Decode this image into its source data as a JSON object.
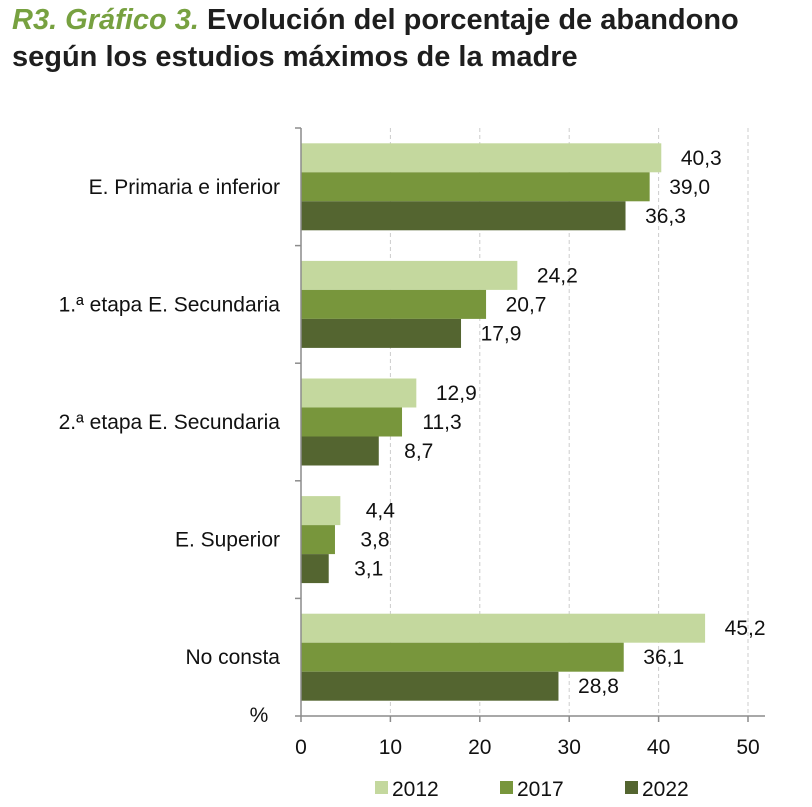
{
  "header": {
    "prefix": "R3. Gráfico 3.",
    "title_line1": "Evolución del porcentaje de abandono",
    "title_line2": "según los estudios máximos de la madre"
  },
  "colors": {
    "s2012": "#c4d89e",
    "s2017": "#78963c",
    "s2022": "#546530",
    "grid": "#cccccc",
    "axis": "#8c8c8c",
    "accent": "#77a140"
  },
  "chart_data": {
    "type": "bar",
    "orientation": "horizontal",
    "categories": [
      "E. Primaria e inferior",
      "1.ª etapa E. Secundaria",
      "2.ª etapa E. Secundaria",
      "E. Superior",
      "No consta"
    ],
    "series": [
      {
        "name": "2012",
        "values": [
          40.3,
          24.2,
          12.9,
          4.4,
          45.2
        ],
        "labels": [
          "40,3",
          "24,2",
          "12,9",
          "4,4",
          "45,2"
        ]
      },
      {
        "name": "2017",
        "values": [
          39.0,
          20.7,
          11.3,
          3.8,
          36.1
        ],
        "labels": [
          "39,0",
          "20,7",
          "11,3",
          "3,8",
          "36,1"
        ]
      },
      {
        "name": "2022",
        "values": [
          36.3,
          17.9,
          8.7,
          3.1,
          28.8
        ],
        "labels": [
          "36,3",
          "17,9",
          "8,7",
          "3,1",
          "28,8"
        ]
      }
    ],
    "xlim": [
      0,
      50
    ],
    "xticks": [
      "0",
      "10",
      "20",
      "30",
      "40",
      "50"
    ],
    "xticks_values": [
      0,
      10,
      20,
      30,
      40,
      50
    ],
    "axis_unit_label": "%",
    "grid": "vertical dashed",
    "legend": "bottom"
  }
}
